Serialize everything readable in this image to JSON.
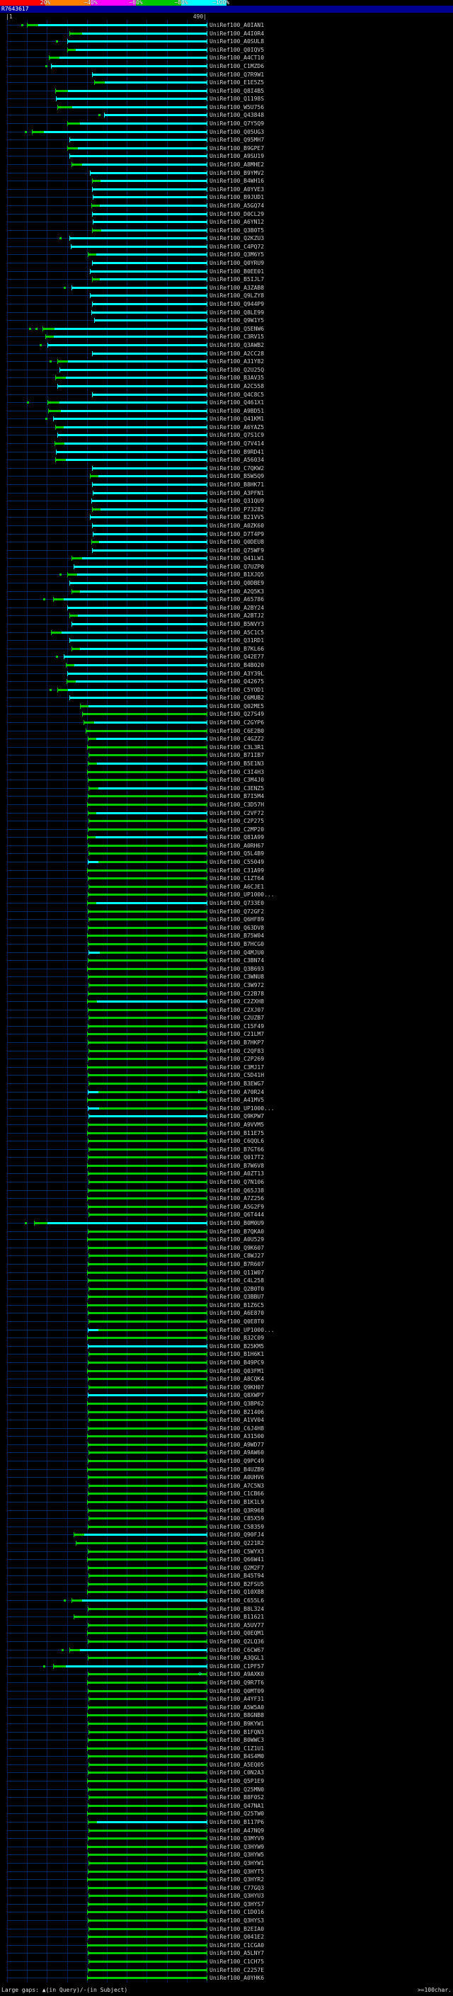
{
  "title_bar": {
    "title": "R7643617"
  },
  "scale_key": {
    "labels": [
      "20%",
      "~40%",
      "~60%",
      "~80%",
      "~100%"
    ],
    "colors": [
      "#ff0000",
      "#ff8000",
      "#ff00ff",
      "#00c800",
      "#00ffff"
    ]
  },
  "footer": {
    "left": "Large gaps: ▲(in Query)/-(in Subject)",
    "right": ">=100char."
  },
  "label_prefix": "UniRef100_",
  "colors": {
    "cyan": "#00ffff",
    "green": "#00cc00",
    "lane": "#002a66",
    "grid": "#001a55",
    "label": "#d0d0d0"
  },
  "chart_data": {
    "type": "bar",
    "orientation": "horizontal",
    "title": "R7643617",
    "x_axis": {
      "min": 1,
      "max": 490,
      "left_label": "|1",
      "right_label": "490|"
    },
    "legend": {
      "position": "top",
      "labels": [
        "20%",
        "~40%",
        "~60%",
        "~80%",
        "~100%"
      ],
      "colors": [
        "#ff0000",
        "#ff8000",
        "#ff00ff",
        "#00c800",
        "#00ffff"
      ]
    },
    "hit_format": "[accession, align_start, color_pattern(c=cyan,g=green,gc=green-then-cyan,cg=cyan-then-green), split_pos, gap_marker_positions, extra_marker]",
    "hits": [
      [
        "A0IAN1",
        50,
        "gc",
        78,
        [
          35
        ]
      ],
      [
        "A4I0R4",
        155,
        "gc",
        185
      ],
      [
        "A0SUL8",
        150,
        "c",
        0,
        [
          120
        ]
      ],
      [
        "Q0IQV5",
        150,
        "gc",
        170
      ],
      [
        "A4CT10",
        105,
        "gc",
        130
      ],
      [
        "C1MZD6",
        110,
        "c",
        0,
        [
          95
        ]
      ],
      [
        "Q7R9W1",
        210,
        "c",
        0
      ],
      [
        "E1E5Z5",
        215,
        "gc",
        240
      ],
      [
        "Q8I4B5",
        120,
        "gc",
        150
      ],
      [
        "Q1198S",
        122,
        "c",
        0
      ],
      [
        "W5U756",
        125,
        "gc",
        160
      ],
      [
        "Q43848",
        240,
        "c",
        0,
        [
          225
        ]
      ],
      [
        "Q7Y5Q9",
        150,
        "gc",
        180
      ],
      [
        "Q05UG3",
        62,
        "gc",
        92,
        [
          45
        ]
      ],
      [
        "Q95MH7",
        155,
        "c",
        0
      ],
      [
        "B9GPE7",
        150,
        "gc",
        175
      ],
      [
        "A9SU19",
        155,
        "c",
        0
      ],
      [
        "A8MHE2",
        160,
        "gc",
        185
      ],
      [
        "B9YMV2",
        205,
        "c",
        0
      ],
      [
        "B4WH16",
        210,
        "gc",
        230
      ],
      [
        "A0YVE3",
        210,
        "c",
        0
      ],
      [
        "B9JUD1",
        212,
        "c",
        0
      ],
      [
        "A5GQ74",
        208,
        "gc",
        228
      ],
      [
        "D0CL29",
        210,
        "c",
        0
      ],
      [
        "A6YN12",
        212,
        "c",
        0
      ],
      [
        "Q3B0T5",
        210,
        "gc",
        232
      ],
      [
        "Q2KZU3",
        155,
        "c",
        0,
        [
          130
        ]
      ],
      [
        "C4PQ72",
        158,
        "c",
        0
      ],
      [
        "Q3M6Y5",
        200,
        "gc",
        220
      ],
      [
        "Q0YRU9",
        210,
        "c",
        0
      ],
      [
        "B0EE01",
        205,
        "c",
        0
      ],
      [
        "B5IJL7",
        210,
        "gc",
        228
      ],
      [
        "A3ZAB8",
        160,
        "c",
        0,
        [
          140
        ]
      ],
      [
        "Q9LZY8",
        205,
        "c",
        0
      ],
      [
        "Q944P9",
        210,
        "c",
        0
      ],
      [
        "Q8LE99",
        208,
        "c",
        0
      ],
      [
        "Q9W1Y5",
        215,
        "c",
        0
      ],
      [
        "Q5ENW6",
        88,
        "gc",
        118,
        [
          55,
          70
        ]
      ],
      [
        "C3RV15",
        95,
        "gc",
        115
      ],
      [
        "Q3AWB2",
        100,
        "c",
        0,
        [
          80
        ]
      ],
      [
        "A2CC28",
        210,
        "c",
        0
      ],
      [
        "A31Y82",
        125,
        "gc",
        150,
        [
          105
        ]
      ],
      [
        "Q2U25Q",
        130,
        "c",
        0
      ],
      [
        "B3AV35",
        120,
        "gc",
        145
      ],
      [
        "A2C558",
        125,
        "c",
        0
      ],
      [
        "Q4C8C5",
        210,
        "c",
        0
      ],
      [
        "Q461X1",
        100,
        "gc",
        130,
        [
          50
        ]
      ],
      [
        "A9BD51",
        102,
        "gc",
        132
      ],
      [
        "Q41KM1",
        115,
        "c",
        0,
        [
          95
        ]
      ],
      [
        "A6YAZ5",
        120,
        "gc",
        140
      ],
      [
        "Q7S1C9",
        125,
        "c",
        0
      ],
      [
        "Q7V414",
        118,
        "gc",
        142
      ],
      [
        "B9RD41",
        122,
        "c",
        0
      ],
      [
        "A56034",
        120,
        "gc",
        145
      ],
      [
        "C7QKW2",
        210,
        "c",
        0
      ],
      [
        "B5W5Q9",
        205,
        "gc",
        225
      ],
      [
        "B8HK71",
        210,
        "c",
        0
      ],
      [
        "A3PFN1",
        212,
        "c",
        0
      ],
      [
        "Q31QU9",
        208,
        "c",
        0
      ],
      [
        "P73282",
        210,
        "gc",
        230
      ],
      [
        "B21VV5",
        205,
        "c",
        0
      ],
      [
        "A0ZK60",
        210,
        "c",
        0
      ],
      [
        "D7T4P9",
        212,
        "c",
        0
      ],
      [
        "Q0DEU8",
        208,
        "gc",
        226
      ],
      [
        "Q75WF9",
        210,
        "c",
        0
      ],
      [
        "Q41LW1",
        160,
        "gc",
        185
      ],
      [
        "Q7UZP0",
        165,
        "c",
        0
      ],
      [
        "B1XJQ5",
        150,
        "gc",
        172,
        [
          130
        ]
      ],
      [
        "Q0DBE9",
        155,
        "c",
        0
      ],
      [
        "A2Q5K3",
        160,
        "gc",
        180
      ],
      [
        "A65786",
        114,
        "gc",
        140,
        [
          90
        ]
      ],
      [
        "A2BY24",
        150,
        "c",
        0
      ],
      [
        "A2BTJ2",
        155,
        "gc",
        175
      ],
      [
        "B5NVY3",
        160,
        "c",
        0
      ],
      [
        "A5C1C5",
        110,
        "gc",
        135
      ],
      [
        "Q31RD1",
        155,
        "c",
        0
      ],
      [
        "B7KL66",
        160,
        "gc",
        180
      ],
      [
        "Q42E77",
        140,
        "c",
        0,
        [
          120
        ]
      ],
      [
        "B4B020",
        145,
        "gc",
        165
      ],
      [
        "A3Y39L",
        150,
        "c",
        0
      ],
      [
        "Q42675",
        148,
        "gc",
        170
      ],
      [
        "C5YOD1",
        125,
        "gc",
        150,
        [
          105
        ]
      ],
      [
        "C6MUB2",
        155,
        "c",
        0
      ],
      [
        "Q02ME5",
        180,
        "gc",
        200
      ],
      [
        "Q27S49",
        185,
        "g",
        0
      ],
      [
        "C2GYP6",
        190,
        "gc",
        215
      ],
      [
        "C6E2B0",
        195,
        "g",
        0
      ],
      [
        "C4GZZ2",
        200,
        "gc",
        220
      ],
      [
        "C3L3R1",
        198,
        "g",
        0
      ],
      [
        "B71IB7",
        202,
        "g",
        0
      ],
      [
        "B5E1N3",
        200,
        "gc",
        222
      ],
      [
        "C3I4H3",
        198,
        "g",
        0
      ],
      [
        "C3M4J0",
        200,
        "g",
        0
      ],
      [
        "C3ENZ5",
        202,
        "gc",
        225
      ],
      [
        "B7I5M4",
        200,
        "g",
        0
      ],
      [
        "C3D57H",
        198,
        "g",
        0
      ],
      [
        "C2VF72",
        200,
        "gc",
        220
      ],
      [
        "C2P275",
        202,
        "g",
        0
      ],
      [
        "C2MP20",
        200,
        "g",
        0
      ],
      [
        "Q81A99",
        198,
        "gc",
        218
      ],
      [
        "A0RH67",
        200,
        "g",
        0
      ],
      [
        "Q5L4B9",
        202,
        "g",
        0
      ],
      [
        "C55049",
        200,
        "cg",
        225
      ],
      [
        "C31A99",
        198,
        "g",
        0
      ],
      [
        "C1ZT64",
        200,
        "g",
        0
      ],
      [
        "A6CJE1",
        202,
        "g",
        0
      ],
      [
        "UP1000...",
        200,
        "g",
        0
      ],
      [
        "Q733E0",
        198,
        "gc",
        220
      ],
      [
        "Q72GF2",
        200,
        "g",
        0
      ],
      [
        "Q6HF89",
        202,
        "g",
        0
      ],
      [
        "Q63DV8",
        200,
        "g",
        0
      ],
      [
        "B75W04",
        198,
        "g",
        0
      ],
      [
        "B7HCG0",
        200,
        "g",
        0
      ],
      [
        "Q4MJU0",
        202,
        "cg",
        228
      ],
      [
        "C3BN74",
        200,
        "g",
        0
      ],
      [
        "Q3B693",
        198,
        "g",
        0
      ],
      [
        "C3WNU8",
        200,
        "g",
        0
      ],
      [
        "C3W972",
        202,
        "g",
        0
      ],
      [
        "C22B78",
        200,
        "g",
        0
      ],
      [
        "C2ZXH8",
        198,
        "gc",
        222
      ],
      [
        "C2XJ07",
        200,
        "g",
        0
      ],
      [
        "C2UZB7",
        202,
        "g",
        0
      ],
      [
        "C15F49",
        200,
        "g",
        0
      ],
      [
        "C21LM7",
        198,
        "g",
        0
      ],
      [
        "B7HKP7",
        200,
        "g",
        0
      ],
      [
        "C2QF83",
        202,
        "g",
        0
      ],
      [
        "C2P269",
        200,
        "g",
        0
      ],
      [
        "C3MJ17",
        198,
        "g",
        0
      ],
      [
        "C5D41H",
        200,
        "g",
        0
      ],
      [
        "B3EWG7",
        202,
        "g",
        0
      ],
      [
        "A70R24",
        200,
        "cg",
        224,
        0,
        "▷"
      ],
      [
        "A41MV5",
        198,
        "g",
        0
      ],
      [
        "UP1000...",
        200,
        "cg",
        226
      ],
      [
        "Q9KPW7",
        202,
        "c",
        0
      ],
      [
        "A9VVM5",
        200,
        "g",
        0
      ],
      [
        "B11E75",
        198,
        "g",
        0
      ],
      [
        "C6QQL6",
        200,
        "g",
        0
      ],
      [
        "B7GT66",
        202,
        "g",
        0
      ],
      [
        "Q017T2",
        200,
        "g",
        0
      ],
      [
        "B7W6V8",
        198,
        "g",
        0
      ],
      [
        "A0ZT13",
        200,
        "g",
        0
      ],
      [
        "Q7N106",
        202,
        "g",
        0
      ],
      [
        "Q65J38",
        200,
        "g",
        0
      ],
      [
        "A7Z256",
        198,
        "g",
        0
      ],
      [
        "A5G2F9",
        200,
        "g",
        0
      ],
      [
        "Q6T444",
        202,
        "g",
        0
      ],
      [
        "B0M0U9",
        67,
        "gc",
        100,
        [
          45
        ]
      ],
      [
        "B7QKA0",
        200,
        "g",
        0
      ],
      [
        "A0U529",
        198,
        "g",
        0
      ],
      [
        "Q9K607",
        200,
        "g",
        0
      ],
      [
        "C8WJ27",
        202,
        "g",
        0
      ],
      [
        "B7R607",
        200,
        "g",
        0
      ],
      [
        "Q11W07",
        198,
        "g",
        0
      ],
      [
        "C4L258",
        200,
        "g",
        0
      ],
      [
        "Q2B0T0",
        202,
        "g",
        0
      ],
      [
        "Q3BBU7",
        200,
        "g",
        0
      ],
      [
        "B1Z6C5",
        198,
        "g",
        0
      ],
      [
        "A6E870",
        200,
        "g",
        0
      ],
      [
        "Q0E8T0",
        202,
        "g",
        0
      ],
      [
        "UP1000...",
        200,
        "cg",
        225
      ],
      [
        "B32C09",
        198,
        "g",
        0
      ],
      [
        "B25KM5",
        200,
        "c",
        0
      ],
      [
        "B1H6K1",
        202,
        "g",
        0
      ],
      [
        "B49PC9",
        200,
        "g",
        0
      ],
      [
        "Q03FM1",
        198,
        "g",
        0
      ],
      [
        "A8CQK4",
        200,
        "g",
        0
      ],
      [
        "Q9KH07",
        202,
        "g",
        0
      ],
      [
        "Q8XWP7",
        200,
        "c",
        0
      ],
      [
        "Q3BP62",
        198,
        "g",
        0
      ],
      [
        "B21406",
        200,
        "g",
        0
      ],
      [
        "A1VV04",
        202,
        "g",
        0
      ],
      [
        "C6J4H8",
        200,
        "g",
        0
      ],
      [
        "A31500",
        198,
        "g",
        0
      ],
      [
        "A9WD77",
        200,
        "g",
        0
      ],
      [
        "A9AW60",
        202,
        "g",
        0
      ],
      [
        "Q9PC49",
        200,
        "g",
        0
      ],
      [
        "B4UZB9",
        198,
        "g",
        0
      ],
      [
        "A0UHV6",
        200,
        "g",
        0
      ],
      [
        "A7C5N3",
        202,
        "g",
        0
      ],
      [
        "C1CB66",
        200,
        "g",
        0
      ],
      [
        "B1K1L9",
        198,
        "g",
        0
      ],
      [
        "Q3R968",
        200,
        "g",
        0
      ],
      [
        "C85X59",
        202,
        "g",
        0
      ],
      [
        "C58359",
        200,
        "g",
        0
      ],
      [
        "Q90FJ4",
        165,
        "gc",
        190
      ],
      [
        "Q221R2",
        170,
        "g",
        0
      ],
      [
        "C5WYX3",
        200,
        "g",
        0
      ],
      [
        "Q66W41",
        198,
        "g",
        0
      ],
      [
        "Q2M2F7",
        200,
        "g",
        0
      ],
      [
        "B45T94",
        202,
        "g",
        0
      ],
      [
        "B2FSU5",
        200,
        "g",
        0
      ],
      [
        "Q10X88",
        198,
        "g",
        0
      ],
      [
        "C655L6",
        160,
        "gc",
        185,
        [
          140
        ]
      ],
      [
        "B8L324",
        200,
        "g",
        0
      ],
      [
        "B11621",
        165,
        "g",
        0
      ],
      [
        "A5UV77",
        200,
        "g",
        0
      ],
      [
        "Q0EQM1",
        198,
        "g",
        0
      ],
      [
        "Q2LQ36",
        200,
        "g",
        0
      ],
      [
        "C6CW67",
        155,
        "gc",
        180,
        [
          135
        ]
      ],
      [
        "A3QGL1",
        200,
        "g",
        0
      ],
      [
        "C1PF57",
        115,
        "gc",
        145,
        [
          90
        ]
      ],
      [
        "A9AXK0",
        200,
        "g",
        0,
        0,
        "◇"
      ],
      [
        "Q9R7T6",
        198,
        "g",
        0
      ],
      [
        "Q0MT09",
        200,
        "g",
        0
      ],
      [
        "A4YF31",
        202,
        "g",
        0
      ],
      [
        "A5W5A0",
        200,
        "g",
        0
      ],
      [
        "B8GNB8",
        198,
        "g",
        0
      ],
      [
        "B9KYW1",
        200,
        "g",
        0
      ],
      [
        "B1FQN3",
        202,
        "g",
        0
      ],
      [
        "B0WWC3",
        200,
        "g",
        0
      ],
      [
        "C1Z1U1",
        198,
        "g",
        0
      ],
      [
        "B4S4M0",
        200,
        "g",
        0
      ],
      [
        "A5EQ05",
        202,
        "g",
        0
      ],
      [
        "C0N2A3",
        200,
        "g",
        0
      ],
      [
        "Q5P1E9",
        198,
        "g",
        0
      ],
      [
        "Q25MN0",
        200,
        "g",
        0
      ],
      [
        "B8F0S2",
        202,
        "g",
        0
      ],
      [
        "Q47NA1",
        200,
        "g",
        0
      ],
      [
        "Q25TW0",
        198,
        "g",
        0
      ],
      [
        "B117P6",
        200,
        "gc",
        222
      ],
      [
        "A47NQ9",
        202,
        "g",
        0
      ],
      [
        "Q3MYV9",
        200,
        "g",
        0
      ],
      [
        "Q3HYW9",
        198,
        "g",
        0
      ],
      [
        "Q3HYW5",
        200,
        "g",
        0
      ],
      [
        "Q3HYW1",
        202,
        "g",
        0
      ],
      [
        "Q3HYT5",
        200,
        "g",
        0
      ],
      [
        "Q3HYR2",
        198,
        "g",
        0
      ],
      [
        "C77GQ3",
        200,
        "g",
        0
      ],
      [
        "Q3HYU3",
        202,
        "g",
        0
      ],
      [
        "Q3HYS7",
        200,
        "g",
        0
      ],
      [
        "C1D016",
        198,
        "g",
        0
      ],
      [
        "Q3HYS3",
        200,
        "g",
        0
      ],
      [
        "B2EIA0",
        202,
        "g",
        0
      ],
      [
        "Q041E2",
        200,
        "g",
        0
      ],
      [
        "C1CGA0",
        198,
        "g",
        0
      ],
      [
        "A5LNY7",
        200,
        "g",
        0
      ],
      [
        "C1CH75",
        202,
        "g",
        0
      ],
      [
        "C2257E",
        200,
        "g",
        0
      ],
      [
        "A0YHK6",
        198,
        "g",
        0
      ]
    ]
  }
}
